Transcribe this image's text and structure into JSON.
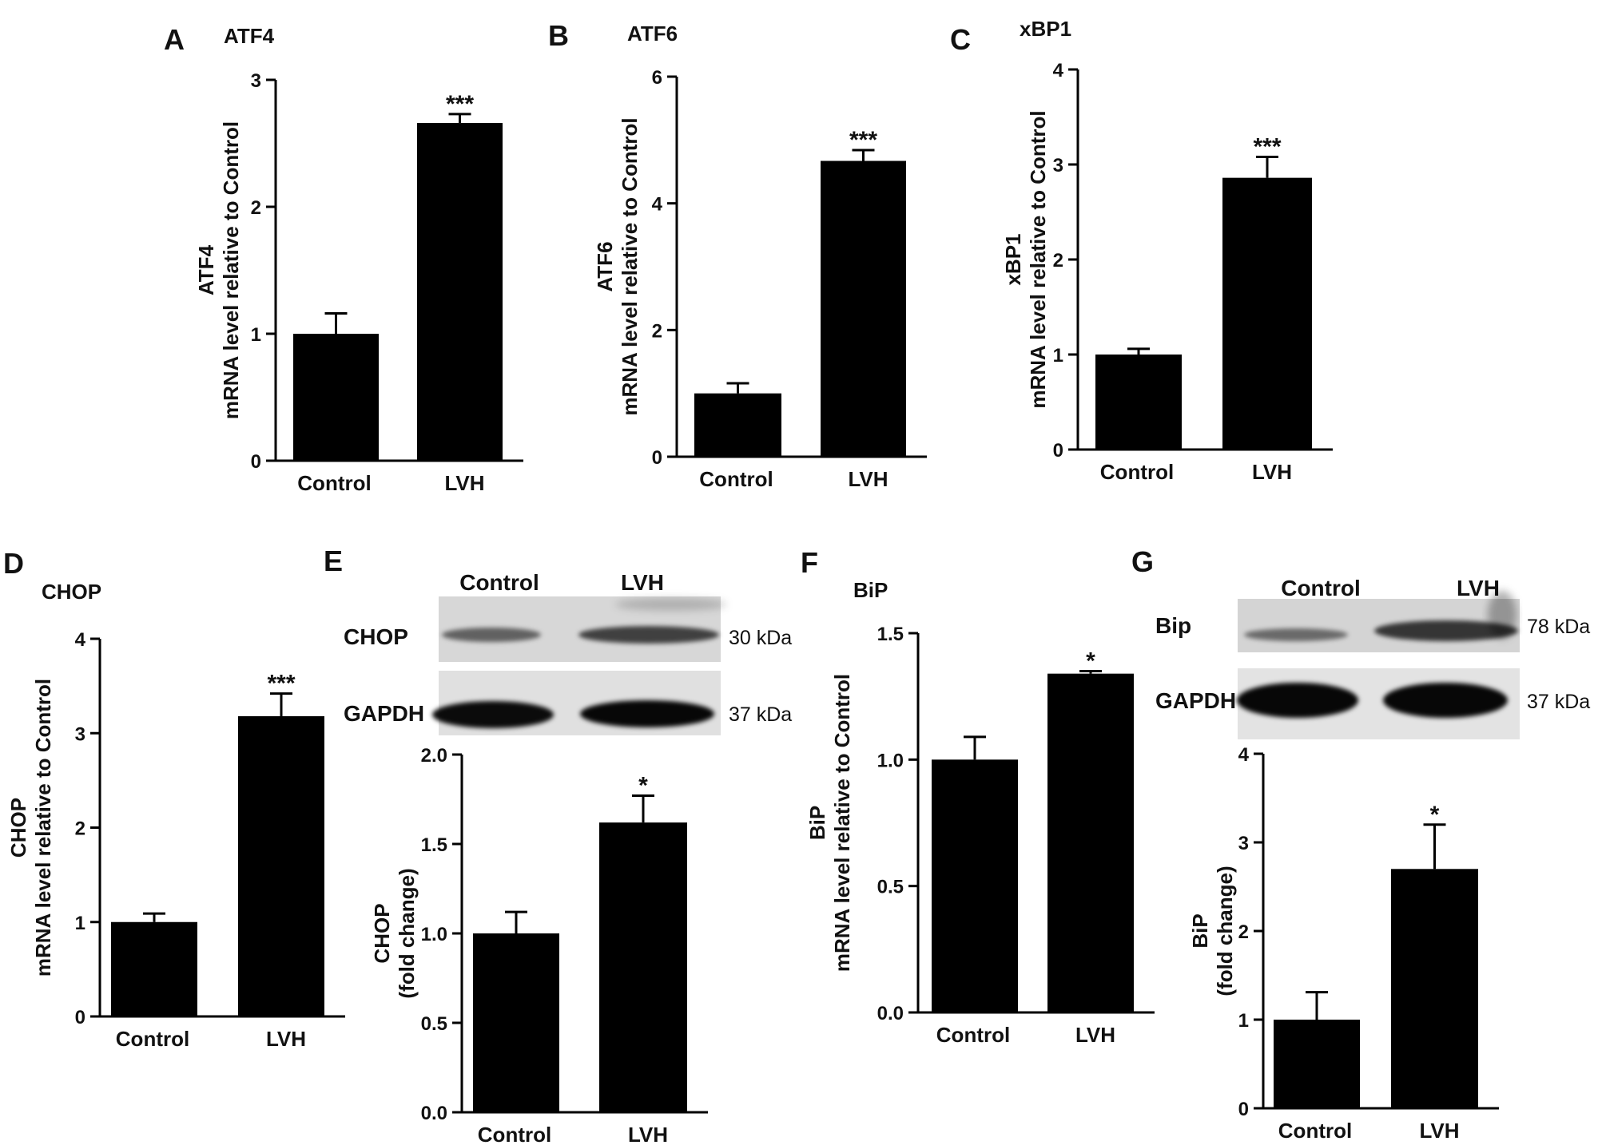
{
  "figure": {
    "panels": [
      {
        "letter": "A",
        "title": "ATF4"
      },
      {
        "letter": "B",
        "title": "ATF6"
      },
      {
        "letter": "C",
        "title": "xBP1"
      },
      {
        "letter": "D",
        "title": "CHOP"
      },
      {
        "letter": "E",
        "title": ""
      },
      {
        "letter": "F",
        "title": "BiP"
      },
      {
        "letter": "G",
        "title": ""
      }
    ]
  },
  "blots": {
    "E": {
      "col_labels": [
        "Control",
        "LVH"
      ],
      "rows": [
        {
          "label": "CHOP",
          "kda": "30 kDa"
        },
        {
          "label": "GAPDH",
          "kda": "37 kDa"
        }
      ]
    },
    "G": {
      "col_labels": [
        "Control",
        "LVH"
      ],
      "rows": [
        {
          "label": "Bip",
          "kda": "78 kDa"
        },
        {
          "label": "GAPDH",
          "kda": "37 kDa"
        }
      ]
    }
  },
  "colors": {
    "bar": "#000000",
    "axis": "#000000",
    "background": "#ffffff"
  },
  "chart_data": [
    {
      "panel": "A",
      "type": "bar",
      "title": "ATF4",
      "categories": [
        "Control",
        "LVH"
      ],
      "values": [
        1.0,
        2.66
      ],
      "errors": [
        0.16,
        0.07
      ],
      "significance": [
        "",
        "***"
      ],
      "ylabel": [
        "ATF4",
        "mRNA level relative to Control"
      ],
      "ylim": [
        0,
        3
      ],
      "yticks": [
        "0",
        "1",
        "2",
        "3"
      ]
    },
    {
      "panel": "B",
      "type": "bar",
      "title": "ATF6",
      "categories": [
        "Control",
        "LVH"
      ],
      "values": [
        1.0,
        4.67
      ],
      "errors": [
        0.16,
        0.17
      ],
      "significance": [
        "",
        "***"
      ],
      "ylabel": [
        "ATF6",
        "mRNA level relative to Control"
      ],
      "ylim": [
        0,
        6
      ],
      "yticks": [
        "0",
        "2",
        "4",
        "6"
      ]
    },
    {
      "panel": "C",
      "type": "bar",
      "title": "xBP1",
      "categories": [
        "Control",
        "LVH"
      ],
      "values": [
        1.0,
        2.86
      ],
      "errors": [
        0.06,
        0.22
      ],
      "significance": [
        "",
        "***"
      ],
      "ylabel": [
        "xBP1",
        "mRNA level relative to Control"
      ],
      "ylim": [
        0,
        4
      ],
      "yticks": [
        "0",
        "1",
        "2",
        "3",
        "4"
      ]
    },
    {
      "panel": "D",
      "type": "bar",
      "title": "CHOP",
      "categories": [
        "Control",
        "LVH"
      ],
      "values": [
        1.0,
        3.18
      ],
      "errors": [
        0.09,
        0.24
      ],
      "significance": [
        "",
        "***"
      ],
      "ylabel": [
        "CHOP",
        "mRNA level relative to Control"
      ],
      "ylim": [
        0,
        4
      ],
      "yticks": [
        "0",
        "1",
        "2",
        "3",
        "4"
      ]
    },
    {
      "panel": "E",
      "type": "bar",
      "title": "",
      "categories": [
        "Control",
        "LVH"
      ],
      "values": [
        1.0,
        1.62
      ],
      "errors": [
        0.12,
        0.15
      ],
      "significance": [
        "",
        "*"
      ],
      "ylabel": [
        "CHOP",
        "(fold change)"
      ],
      "ylim": [
        0,
        2.0
      ],
      "yticks": [
        "0.0",
        "0.5",
        "1.0",
        "1.5",
        "2.0"
      ]
    },
    {
      "panel": "F",
      "type": "bar",
      "title": "BiP",
      "categories": [
        "Control",
        "LVH"
      ],
      "values": [
        1.0,
        1.34
      ],
      "errors": [
        0.09,
        0.01
      ],
      "significance": [
        "",
        "*"
      ],
      "ylabel": [
        "BiP",
        "mRNA level relative to Control"
      ],
      "ylim": [
        0,
        1.5
      ],
      "yticks": [
        "0.0",
        "0.5",
        "1.0",
        "1.5"
      ]
    },
    {
      "panel": "G",
      "type": "bar",
      "title": "",
      "categories": [
        "Control",
        "LVH"
      ],
      "values": [
        1.0,
        2.7
      ],
      "errors": [
        0.31,
        0.5
      ],
      "significance": [
        "",
        "*"
      ],
      "ylabel": [
        "BiP",
        "(fold change)"
      ],
      "ylim": [
        0,
        4
      ],
      "yticks": [
        "0",
        "1",
        "2",
        "3",
        "4"
      ]
    }
  ]
}
